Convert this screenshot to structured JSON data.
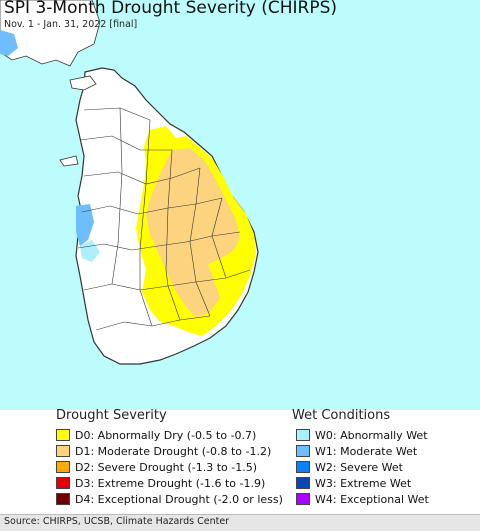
{
  "header": {
    "title": "SPI 3-Month Drought Severity (CHIRPS)",
    "subtitle": "Nov. 1 - Jan. 31, 2022 [final]"
  },
  "map": {
    "ocean_color": "#bdfcfc",
    "land_color": "#ffffff",
    "border_color": "#333333",
    "drought_regions": [
      "D0",
      "D1"
    ],
    "wet_regions": [
      "W0",
      "W1"
    ]
  },
  "legend": {
    "drought_title": "Drought Severity",
    "wet_title": "Wet Conditions",
    "drought": [
      {
        "code": "D0",
        "label": "D0: Abnormally Dry (-0.5 to -0.7)",
        "color": "#ffff00"
      },
      {
        "code": "D1",
        "label": "D1: Moderate Drought (-0.8 to -1.2)",
        "color": "#fcd37f"
      },
      {
        "code": "D2",
        "label": "D2: Severe Drought (-1.3 to -1.5)",
        "color": "#ffaa00"
      },
      {
        "code": "D3",
        "label": "D3: Extreme Drought (-1.6 to -1.9)",
        "color": "#e60000"
      },
      {
        "code": "D4",
        "label": "D4: Exceptional Drought (-2.0 or less)",
        "color": "#730000"
      }
    ],
    "wet": [
      {
        "code": "W0",
        "label": "W0: Abnormally Wet",
        "color": "#aaf0ff"
      },
      {
        "code": "W1",
        "label": "W1: Moderate Wet",
        "color": "#6ebeff"
      },
      {
        "code": "W2",
        "label": "W2: Severe Wet",
        "color": "#0a82ff"
      },
      {
        "code": "W3",
        "label": "W3: Extreme Wet",
        "color": "#0a46b4"
      },
      {
        "code": "W4",
        "label": "W4: Exceptional Wet",
        "color": "#aa00ff"
      }
    ]
  },
  "footer": {
    "source": "Source: CHIRPS, UCSB, Climate Hazards Center"
  }
}
